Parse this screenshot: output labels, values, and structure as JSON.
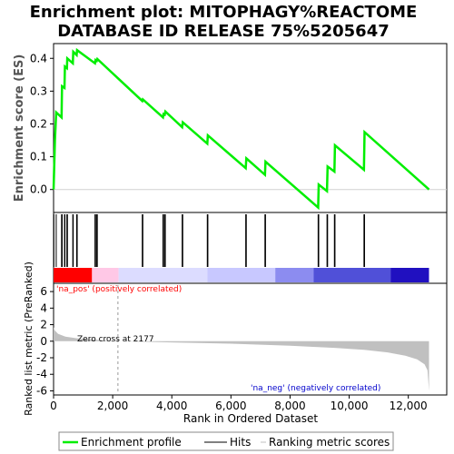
{
  "chart_data": {
    "type": "line",
    "title_line1": "Enrichment plot: MITOPHAGY%REACTOME",
    "title_line2": "DATABASE ID RELEASE 75%5205647",
    "top_panel": {
      "ylabel": "Enrichment score (ES)",
      "ylim": [
        -0.07,
        0.445
      ],
      "yticks": [
        0.0,
        0.1,
        0.2,
        0.3,
        0.4
      ],
      "ytick_labels": [
        "0.0",
        "0.1",
        "0.2",
        "0.3",
        "0.4"
      ],
      "line_color": "#00ee00",
      "series_points": [
        [
          0,
          0.0
        ],
        [
          45,
          0.15
        ],
        [
          90,
          0.235
        ],
        [
          270,
          0.22
        ],
        [
          285,
          0.315
        ],
        [
          370,
          0.31
        ],
        [
          385,
          0.375
        ],
        [
          450,
          0.37
        ],
        [
          465,
          0.4
        ],
        [
          650,
          0.385
        ],
        [
          665,
          0.42
        ],
        [
          780,
          0.41
        ],
        [
          795,
          0.425
        ],
        [
          1400,
          0.385
        ],
        [
          1420,
          0.395
        ],
        [
          1460,
          0.392
        ],
        [
          1480,
          0.398
        ],
        [
          3000,
          0.27
        ],
        [
          3020,
          0.275
        ],
        [
          3700,
          0.22
        ],
        [
          3720,
          0.23
        ],
        [
          3760,
          0.228
        ],
        [
          3780,
          0.238
        ],
        [
          4350,
          0.19
        ],
        [
          4370,
          0.205
        ],
        [
          5200,
          0.14
        ],
        [
          5220,
          0.165
        ],
        [
          6500,
          0.065
        ],
        [
          6520,
          0.095
        ],
        [
          7150,
          0.045
        ],
        [
          7170,
          0.085
        ],
        [
          8950,
          -0.055
        ],
        [
          8970,
          0.015
        ],
        [
          9250,
          -0.005
        ],
        [
          9270,
          0.07
        ],
        [
          9500,
          0.055
        ],
        [
          9520,
          0.135
        ],
        [
          10500,
          0.06
        ],
        [
          10520,
          0.175
        ],
        [
          12700,
          0.0
        ]
      ]
    },
    "hits_panel": {
      "hit_positions": [
        10,
        90,
        270,
        290,
        370,
        385,
        450,
        470,
        650,
        665,
        780,
        800,
        1400,
        1420,
        1460,
        1480,
        3000,
        3020,
        3700,
        3720,
        3760,
        3780,
        4350,
        4370,
        5200,
        5220,
        6500,
        6520,
        7150,
        7170,
        8950,
        8970,
        9250,
        9270,
        9500,
        9520,
        10500,
        10520
      ],
      "gradient_blocks": [
        {
          "start": 0,
          "end": 1300,
          "color": "#ff0000"
        },
        {
          "start": 1300,
          "end": 2200,
          "color": "#ffc8e6"
        },
        {
          "start": 2200,
          "end": 5200,
          "color": "#dcdcff"
        },
        {
          "start": 5200,
          "end": 7500,
          "color": "#c8c8ff"
        },
        {
          "start": 7500,
          "end": 8800,
          "color": "#8c8cf0"
        },
        {
          "start": 8800,
          "end": 11400,
          "color": "#5050d8"
        },
        {
          "start": 11400,
          "end": 12700,
          "color": "#2010c0"
        }
      ]
    },
    "metric_panel": {
      "ylabel": "Ranked list metric (PreRanked)",
      "xlabel": "Rank in Ordered Dataset",
      "ylim": [
        -6.5,
        7
      ],
      "yticks": [
        -6,
        -4,
        -2,
        0,
        2,
        4,
        6
      ],
      "ytick_labels": [
        "-6",
        "-4",
        "-2",
        "0",
        "2",
        "4",
        "6"
      ],
      "xlim": [
        0,
        13300
      ],
      "xticks": [
        0,
        2000,
        4000,
        6000,
        8000,
        10000,
        12000
      ],
      "xtick_labels": [
        "0",
        "2,000",
        "4,000",
        "6,000",
        "8,000",
        "10,000",
        "12,000"
      ],
      "zero_cross": 2177,
      "zero_cross_label": "Zero cross at 2177",
      "na_pos_label": "'na_pos' (positively correlated)",
      "na_neg_label": "'na_neg' (negatively correlated)",
      "na_pos_color": "#ff0000",
      "na_neg_color": "#0000cc",
      "fill_color": "#c0c0c0",
      "metric_curve": [
        [
          0,
          1.7
        ],
        [
          40,
          1.3
        ],
        [
          150,
          0.9
        ],
        [
          400,
          0.55
        ],
        [
          800,
          0.35
        ],
        [
          1500,
          0.15
        ],
        [
          2177,
          0.0
        ],
        [
          4000,
          -0.15
        ],
        [
          6000,
          -0.3
        ],
        [
          8000,
          -0.55
        ],
        [
          9500,
          -0.8
        ],
        [
          10500,
          -1.05
        ],
        [
          11300,
          -1.35
        ],
        [
          11900,
          -1.75
        ],
        [
          12300,
          -2.2
        ],
        [
          12550,
          -2.8
        ],
        [
          12650,
          -3.5
        ],
        [
          12700,
          -6.0
        ]
      ]
    },
    "legend": {
      "items": [
        {
          "label": "Enrichment profile",
          "color": "#00ee00"
        },
        {
          "label": "Hits",
          "color": "#000000"
        },
        {
          "label": "Ranking metric scores",
          "color": "#c0c0c0"
        }
      ]
    }
  }
}
